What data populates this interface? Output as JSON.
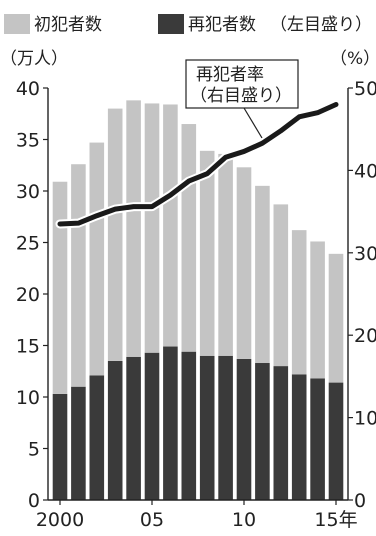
{
  "chart_data": {
    "type": "bar",
    "x": [
      2000,
      2001,
      2002,
      2003,
      2004,
      2005,
      2006,
      2007,
      2008,
      2009,
      2010,
      2011,
      2012,
      2013,
      2014,
      2015
    ],
    "x_tick_labels": [
      {
        "x": 2000,
        "label": "2000"
      },
      {
        "x": 2005,
        "label": "05"
      },
      {
        "x": 2010,
        "label": "10"
      },
      {
        "x": 2015,
        "label": "15年"
      }
    ],
    "stacked": true,
    "series": [
      {
        "name": "再犯者数",
        "color": "#3a3a3a",
        "values": [
          10.3,
          11.0,
          12.1,
          13.5,
          13.9,
          14.3,
          14.9,
          14.4,
          14.0,
          14.0,
          13.7,
          13.3,
          13.0,
          12.2,
          11.8,
          11.4
        ]
      },
      {
        "name": "初犯者数",
        "color": "#c4c4c4",
        "values": [
          20.6,
          21.6,
          22.6,
          24.5,
          24.9,
          24.2,
          23.5,
          22.1,
          19.9,
          19.6,
          18.6,
          17.2,
          15.7,
          14.0,
          13.3,
          12.5
        ]
      },
      {
        "name": "再犯者率",
        "color": "#1a1a1a",
        "axis": "right",
        "type": "line",
        "values": [
          33.5,
          33.6,
          34.5,
          35.3,
          35.6,
          35.6,
          37.0,
          38.7,
          39.6,
          41.6,
          42.3,
          43.3,
          44.8,
          46.5,
          47.0,
          48.0
        ]
      }
    ],
    "legend_right": "（左目盛り）",
    "line_label": [
      "再犯者率",
      "（右目盛り）"
    ],
    "y_left": {
      "unit_label": "（万人）",
      "lim": [
        0,
        40
      ],
      "ticks": [
        0,
        5,
        10,
        15,
        20,
        25,
        30,
        35,
        40
      ]
    },
    "y_right": {
      "unit_label": "（%）",
      "lim": [
        0,
        50
      ],
      "ticks": [
        0,
        10,
        20,
        30,
        40,
        50
      ]
    },
    "grid": false,
    "legend_placement": "top"
  }
}
